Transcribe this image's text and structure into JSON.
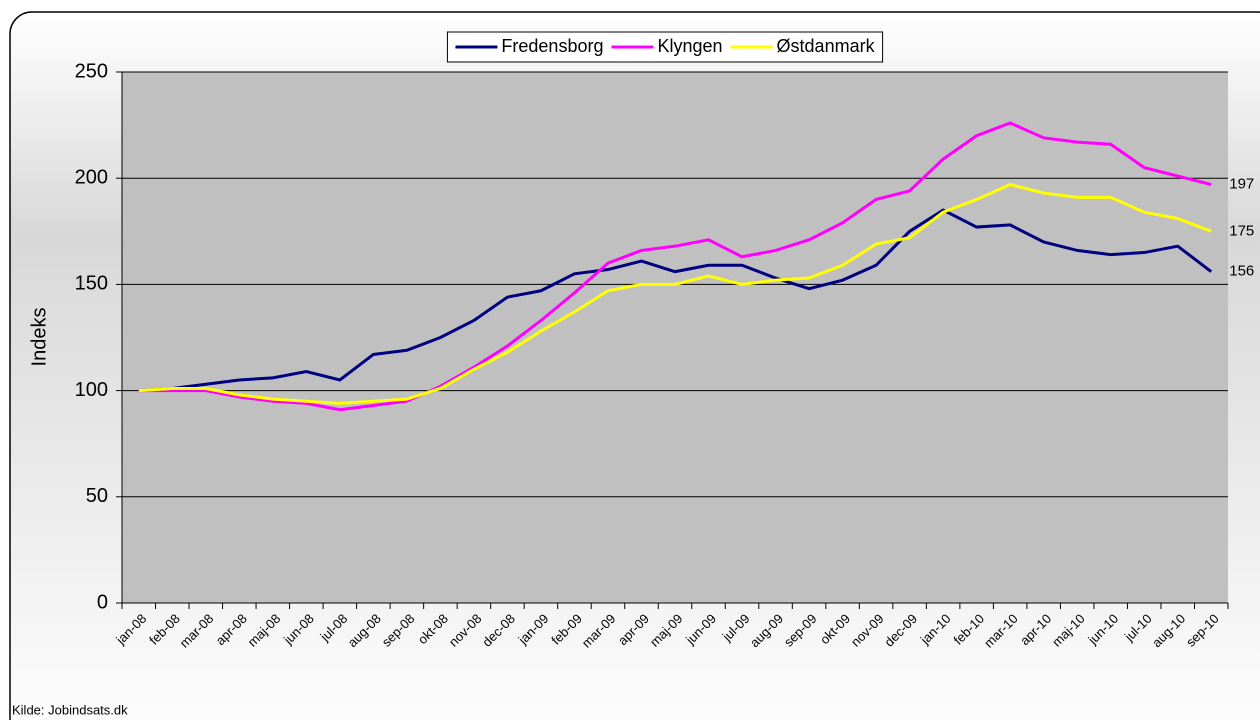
{
  "chart_data": {
    "type": "line",
    "y_label": "Indeks",
    "source": "Kilde: Jobindsats.dk",
    "categories": [
      "jan-08",
      "feb-08",
      "mar-08",
      "apr-08",
      "maj-08",
      "jun-08",
      "jul-08",
      "aug-08",
      "sep-08",
      "okt-08",
      "nov-08",
      "dec-08",
      "jan-09",
      "feb-09",
      "mar-09",
      "apr-09",
      "maj-09",
      "jun-09",
      "jul-09",
      "aug-09",
      "sep-09",
      "okt-09",
      "nov-09",
      "dec-09",
      "jan-10",
      "feb-10",
      "mar-10",
      "apr-10",
      "maj-10",
      "jun-10",
      "jul-10",
      "aug-10",
      "sep-10"
    ],
    "series": [
      {
        "name": "Fredensborg",
        "color": "#000080",
        "values": [
          100,
          101,
          103,
          105,
          106,
          109,
          105,
          117,
          119,
          125,
          133,
          144,
          147,
          155,
          157,
          161,
          156,
          159,
          159,
          153,
          148,
          152,
          159,
          175,
          185,
          177,
          178,
          170,
          166,
          164,
          165,
          168,
          156
        ]
      },
      {
        "name": "Klyngen",
        "color": "#ff00ff",
        "values": [
          100,
          100,
          100,
          97,
          95,
          94,
          91,
          93,
          95,
          102,
          111,
          121,
          133,
          146,
          160,
          166,
          168,
          171,
          163,
          166,
          171,
          179,
          190,
          194,
          209,
          220,
          226,
          219,
          217,
          216,
          205,
          201,
          197
        ]
      },
      {
        "name": "Østdanmark",
        "color": "#ffff00",
        "values": [
          100,
          101,
          101,
          98,
          96,
          95,
          94,
          95,
          96,
          101,
          110,
          118,
          128,
          137,
          147,
          150,
          150,
          154,
          150,
          152,
          153,
          159,
          169,
          172,
          184,
          190,
          197,
          193,
          191,
          191,
          184,
          181,
          175
        ]
      }
    ],
    "ylim": [
      0,
      250
    ],
    "yticks": [
      0,
      50,
      100,
      150,
      200,
      250
    ],
    "grid": true,
    "legend": "top"
  }
}
